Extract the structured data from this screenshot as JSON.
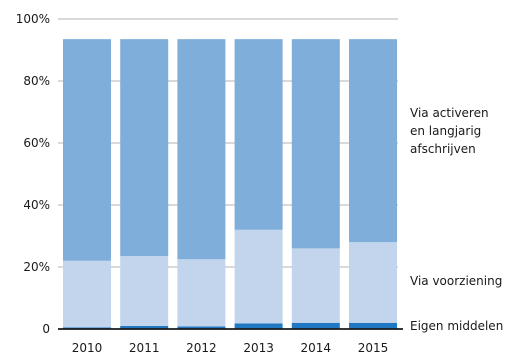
{
  "chart_data": {
    "type": "bar",
    "stacked": true,
    "categories": [
      "2010",
      "2011",
      "2012",
      "2013",
      "2014",
      "2015"
    ],
    "y_tick_labels": [
      "0",
      "20%",
      "40%",
      "60%",
      "80%",
      "100%"
    ],
    "y_tick_values": [
      0,
      20,
      40,
      60,
      80,
      100
    ],
    "ylim": [
      0,
      100
    ],
    "grid": true,
    "legend_placement": "right",
    "series": [
      {
        "name": "Eigen middelen",
        "values": [
          0.5,
          1.0,
          0.8,
          1.8,
          2.0,
          2.0
        ],
        "color": "#1f78c1"
      },
      {
        "name": "Via voorziening",
        "values": [
          21.5,
          22.5,
          21.7,
          30.2,
          24.0,
          26.0
        ],
        "color": "#c3d5ec"
      },
      {
        "name": "Via activeren en langjarig afschrijven",
        "values": [
          71.5,
          70.0,
          71.0,
          61.5,
          67.5,
          65.5
        ],
        "color": "#7eaed9"
      }
    ],
    "legend_lines": {
      "activeren": [
        "Via activeren",
        "en langjarig",
        "afschrijven"
      ],
      "voorziening": [
        "Via voorziening"
      ],
      "eigen": [
        "Eigen middelen"
      ]
    }
  }
}
